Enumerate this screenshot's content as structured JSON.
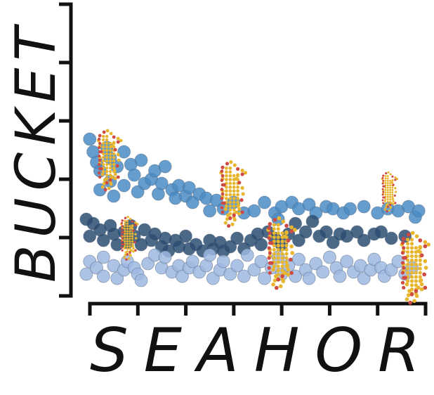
{
  "chart_data": {
    "type": "scatter",
    "title": "",
    "xlabel": "SEAHORS",
    "ylabel": "BUCKET",
    "grid": false,
    "legend": "none",
    "y_tick_count": 6,
    "x_tick_count": 8,
    "series": [
      {
        "color": "#4a8cc6",
        "points": [
          [
            0.02,
            0.68
          ],
          [
            0.03,
            0.62
          ],
          [
            0.04,
            0.57
          ],
          [
            0.05,
            0.53
          ],
          [
            0.05,
            0.44
          ],
          [
            0.07,
            0.64
          ],
          [
            0.08,
            0.59
          ],
          [
            0.08,
            0.48
          ],
          [
            0.09,
            0.41
          ],
          [
            0.1,
            0.55
          ],
          [
            0.12,
            0.62
          ],
          [
            0.12,
            0.46
          ],
          [
            0.14,
            0.56
          ],
          [
            0.15,
            0.51
          ],
          [
            0.16,
            0.43
          ],
          [
            0.17,
            0.58
          ],
          [
            0.18,
            0.47
          ],
          [
            0.2,
            0.49
          ],
          [
            0.21,
            0.53
          ],
          [
            0.22,
            0.42
          ],
          [
            0.23,
            0.47
          ],
          [
            0.24,
            0.55
          ],
          [
            0.26,
            0.44
          ],
          [
            0.27,
            0.4
          ],
          [
            0.28,
            0.46
          ],
          [
            0.3,
            0.41
          ],
          [
            0.31,
            0.45
          ],
          [
            0.32,
            0.38
          ],
          [
            0.34,
            0.42
          ],
          [
            0.36,
            0.4
          ],
          [
            0.37,
            0.34
          ],
          [
            0.39,
            0.39
          ],
          [
            0.41,
            0.35
          ],
          [
            0.44,
            0.38
          ],
          [
            0.47,
            0.33
          ],
          [
            0.5,
            0.34
          ],
          [
            0.53,
            0.38
          ],
          [
            0.56,
            0.33
          ],
          [
            0.58,
            0.36
          ],
          [
            0.61,
            0.38
          ],
          [
            0.63,
            0.35
          ],
          [
            0.66,
            0.37
          ],
          [
            0.68,
            0.33
          ],
          [
            0.71,
            0.36
          ],
          [
            0.73,
            0.35
          ],
          [
            0.76,
            0.33
          ],
          [
            0.78,
            0.35
          ],
          [
            0.82,
            0.36
          ],
          [
            0.86,
            0.33
          ],
          [
            0.89,
            0.35
          ],
          [
            0.92,
            0.34
          ],
          [
            0.95,
            0.36
          ],
          [
            0.97,
            0.31
          ],
          [
            0.98,
            0.34
          ],
          [
            0.57,
            0.3
          ]
        ]
      },
      {
        "color": "#2c4d72",
        "points": [
          [
            0.01,
            0.3
          ],
          [
            0.02,
            0.22
          ],
          [
            0.03,
            0.28
          ],
          [
            0.05,
            0.25
          ],
          [
            0.06,
            0.2
          ],
          [
            0.08,
            0.27
          ],
          [
            0.09,
            0.23
          ],
          [
            0.1,
            0.18
          ],
          [
            0.12,
            0.24
          ],
          [
            0.13,
            0.19
          ],
          [
            0.14,
            0.27
          ],
          [
            0.15,
            0.22
          ],
          [
            0.17,
            0.18
          ],
          [
            0.18,
            0.25
          ],
          [
            0.2,
            0.2
          ],
          [
            0.21,
            0.23
          ],
          [
            0.23,
            0.17
          ],
          [
            0.24,
            0.21
          ],
          [
            0.25,
            0.15
          ],
          [
            0.27,
            0.2
          ],
          [
            0.28,
            0.17
          ],
          [
            0.3,
            0.22
          ],
          [
            0.31,
            0.16
          ],
          [
            0.33,
            0.18
          ],
          [
            0.35,
            0.15
          ],
          [
            0.37,
            0.2
          ],
          [
            0.38,
            0.16
          ],
          [
            0.4,
            0.19
          ],
          [
            0.41,
            0.15
          ],
          [
            0.43,
            0.17
          ],
          [
            0.45,
            0.21
          ],
          [
            0.47,
            0.16
          ],
          [
            0.49,
            0.2
          ],
          [
            0.51,
            0.23
          ],
          [
            0.52,
            0.18
          ],
          [
            0.54,
            0.24
          ],
          [
            0.56,
            0.21
          ],
          [
            0.58,
            0.18
          ],
          [
            0.6,
            0.23
          ],
          [
            0.62,
            0.28
          ],
          [
            0.63,
            0.2
          ],
          [
            0.65,
            0.24
          ],
          [
            0.67,
            0.29
          ],
          [
            0.69,
            0.22
          ],
          [
            0.71,
            0.24
          ],
          [
            0.73,
            0.19
          ],
          [
            0.75,
            0.23
          ],
          [
            0.77,
            0.22
          ],
          [
            0.8,
            0.24
          ],
          [
            0.82,
            0.2
          ],
          [
            0.85,
            0.23
          ],
          [
            0.87,
            0.24
          ],
          [
            0.9,
            0.21
          ],
          [
            0.94,
            0.22
          ]
        ]
      },
      {
        "color": "#9db8e2",
        "points": [
          [
            0.01,
            0.04
          ],
          [
            0.02,
            0.1
          ],
          [
            0.04,
            0.07
          ],
          [
            0.06,
            0.12
          ],
          [
            0.06,
            0.03
          ],
          [
            0.09,
            0.08
          ],
          [
            0.1,
            0.02
          ],
          [
            0.12,
            0.06
          ],
          [
            0.13,
            0.1
          ],
          [
            0.15,
            0.07
          ],
          [
            0.16,
            0.04
          ],
          [
            0.17,
            0.01
          ],
          [
            0.19,
            0.09
          ],
          [
            0.21,
            0.13
          ],
          [
            0.23,
            0.07
          ],
          [
            0.24,
            0.12
          ],
          [
            0.26,
            0.05
          ],
          [
            0.28,
            0.08
          ],
          [
            0.29,
            0.03
          ],
          [
            0.31,
            0.07
          ],
          [
            0.32,
            0.1
          ],
          [
            0.34,
            0.05
          ],
          [
            0.36,
            0.08
          ],
          [
            0.37,
            0.13
          ],
          [
            0.38,
            0.02
          ],
          [
            0.4,
            0.06
          ],
          [
            0.41,
            0.1
          ],
          [
            0.43,
            0.04
          ],
          [
            0.45,
            0.08
          ],
          [
            0.47,
            0.03
          ],
          [
            0.48,
            0.13
          ],
          [
            0.5,
            0.06
          ],
          [
            0.52,
            0.1
          ],
          [
            0.53,
            0.02
          ],
          [
            0.55,
            0.07
          ],
          [
            0.57,
            0.12
          ],
          [
            0.58,
            0.04
          ],
          [
            0.6,
            0.08
          ],
          [
            0.62,
            0.03
          ],
          [
            0.63,
            0.11
          ],
          [
            0.65,
            0.06
          ],
          [
            0.66,
            0.02
          ],
          [
            0.68,
            0.09
          ],
          [
            0.7,
            0.05
          ],
          [
            0.72,
            0.12
          ],
          [
            0.74,
            0.07
          ],
          [
            0.75,
            0.03
          ],
          [
            0.77,
            0.1
          ],
          [
            0.79,
            0.05
          ],
          [
            0.81,
            0.08
          ],
          [
            0.82,
            0.02
          ],
          [
            0.84,
            0.06
          ],
          [
            0.85,
            0.11
          ],
          [
            0.87,
            0.07
          ],
          [
            0.88,
            0.03
          ],
          [
            0.9,
            0.06
          ],
          [
            0.92,
            0.1
          ],
          [
            0.94,
            0.04
          ],
          [
            0.96,
            0.07
          ]
        ]
      }
    ],
    "decorations": [
      {
        "kind": "seahorse-icon",
        "x": 0.07,
        "y": 0.58,
        "scale": 1.0
      },
      {
        "kind": "seahorse-icon",
        "x": 0.13,
        "y": 0.21,
        "scale": 0.72
      },
      {
        "kind": "seahorse-icon",
        "x": 0.43,
        "y": 0.42,
        "scale": 1.08
      },
      {
        "kind": "seahorse-icon",
        "x": 0.57,
        "y": 0.14,
        "scale": 1.18
      },
      {
        "kind": "seahorse-icon",
        "x": 0.89,
        "y": 0.43,
        "scale": 0.66
      },
      {
        "kind": "seahorse-icon",
        "x": 0.96,
        "y": 0.07,
        "scale": 1.18
      }
    ],
    "decoration_colors": {
      "body": "#e8b62e",
      "edge": "#cf4a43"
    }
  }
}
